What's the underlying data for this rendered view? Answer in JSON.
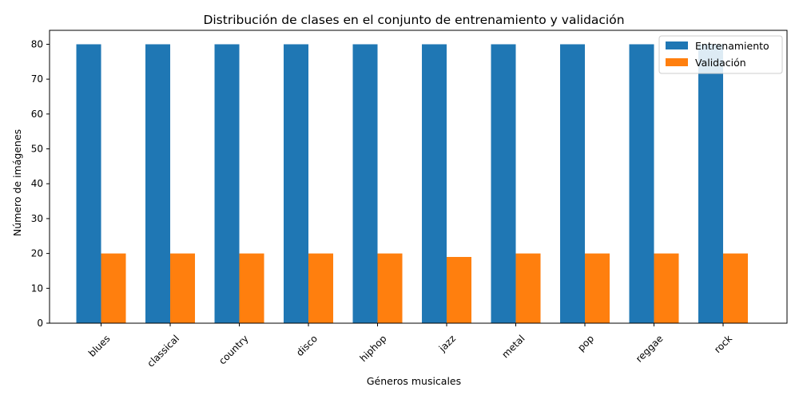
{
  "chart_data": {
    "type": "bar",
    "title": "Distribución de clases en el conjunto de entrenamiento y validación",
    "xlabel": "Géneros musicales",
    "ylabel": "Número de imágenes",
    "categories": [
      "blues",
      "classical",
      "country",
      "disco",
      "hiphop",
      "jazz",
      "metal",
      "pop",
      "reggae",
      "rock"
    ],
    "series": [
      {
        "name": "Entrenamiento",
        "values": [
          80,
          80,
          80,
          80,
          80,
          80,
          80,
          80,
          80,
          80
        ],
        "color": "#1f77b4"
      },
      {
        "name": "Validación",
        "values": [
          20,
          20,
          20,
          20,
          20,
          19,
          20,
          20,
          20,
          20
        ],
        "color": "#ff7f0e"
      }
    ],
    "ylim": [
      0,
      84
    ],
    "yticks": [
      0,
      10,
      20,
      30,
      40,
      50,
      60,
      70,
      80
    ],
    "legend_position": "top-right",
    "grid": false
  }
}
